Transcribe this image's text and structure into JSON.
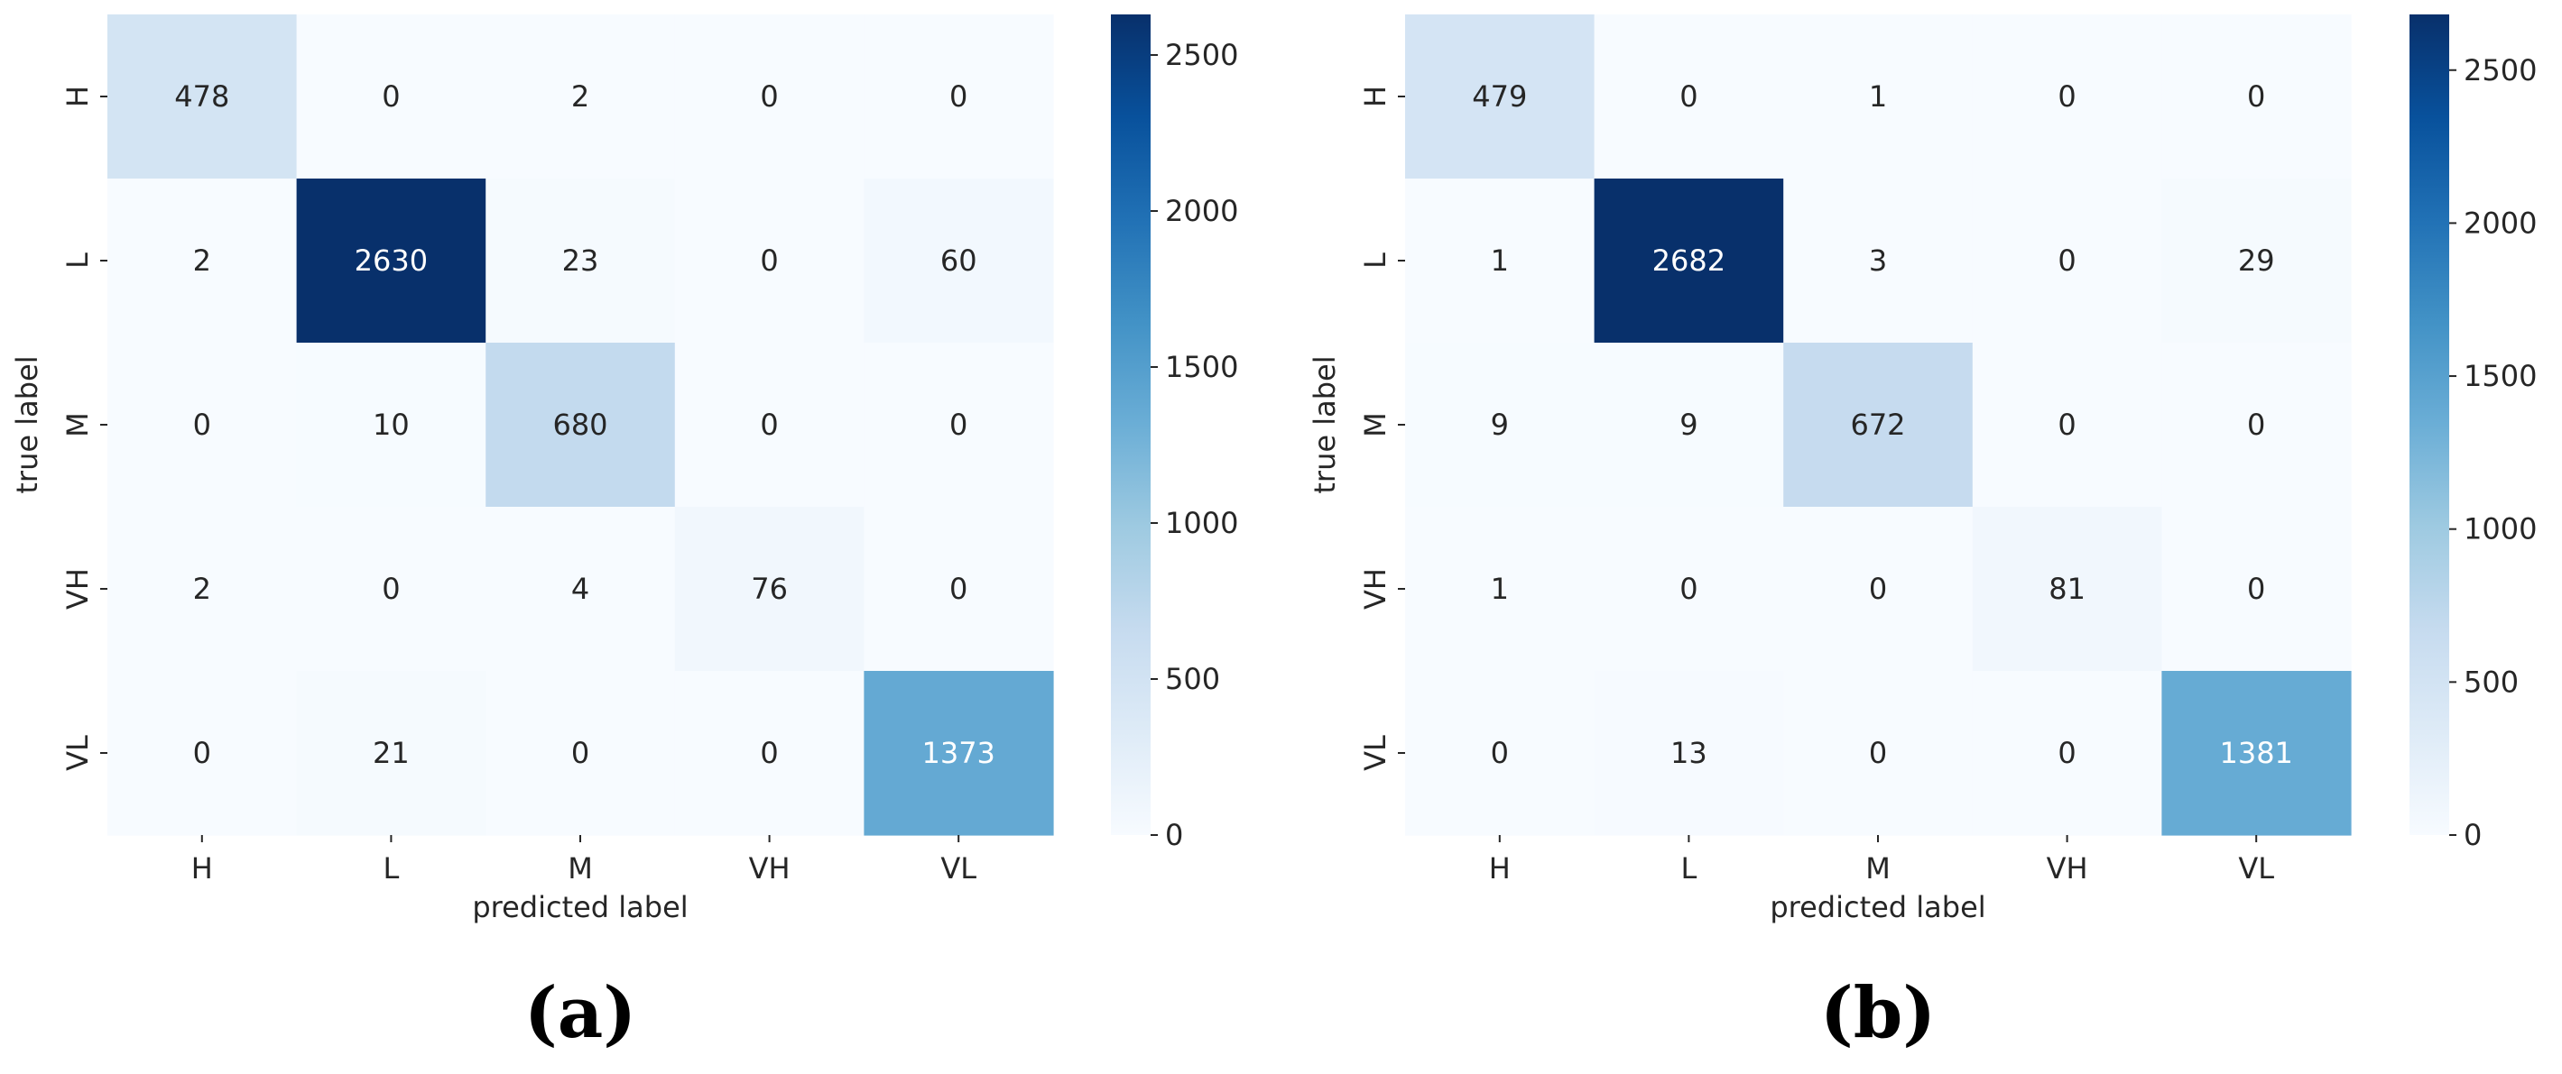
{
  "chart_data": [
    {
      "type": "heatmap",
      "panel_label": "(a)",
      "xlabel": "predicted label",
      "ylabel": "true label",
      "x_categories": [
        "H",
        "L",
        "M",
        "VH",
        "VL"
      ],
      "y_categories": [
        "H",
        "L",
        "M",
        "VH",
        "VL"
      ],
      "values": [
        [
          478,
          0,
          2,
          0,
          0
        ],
        [
          2,
          2630,
          23,
          0,
          60
        ],
        [
          0,
          10,
          680,
          0,
          0
        ],
        [
          2,
          0,
          4,
          76,
          0
        ],
        [
          0,
          21,
          0,
          0,
          1373
        ]
      ],
      "colormap": "Blues",
      "colorbar": {
        "min": 0,
        "max": 2630,
        "ticks": [
          0,
          500,
          1000,
          1500,
          2000,
          2500
        ]
      }
    },
    {
      "type": "heatmap",
      "panel_label": "(b)",
      "xlabel": "predicted label",
      "ylabel": "true label",
      "x_categories": [
        "H",
        "L",
        "M",
        "VH",
        "VL"
      ],
      "y_categories": [
        "H",
        "L",
        "M",
        "VH",
        "VL"
      ],
      "values": [
        [
          479,
          0,
          1,
          0,
          0
        ],
        [
          1,
          2682,
          3,
          0,
          29
        ],
        [
          9,
          9,
          672,
          0,
          0
        ],
        [
          1,
          0,
          0,
          81,
          0
        ],
        [
          0,
          13,
          0,
          0,
          1381
        ]
      ],
      "colormap": "Blues",
      "colorbar": {
        "min": 0,
        "max": 2682,
        "ticks": [
          0,
          500,
          1000,
          1500,
          2000,
          2500
        ]
      }
    }
  ],
  "colors": {
    "text_dark": "#262626",
    "text_light": "#ffffff",
    "caption": "#000000"
  }
}
